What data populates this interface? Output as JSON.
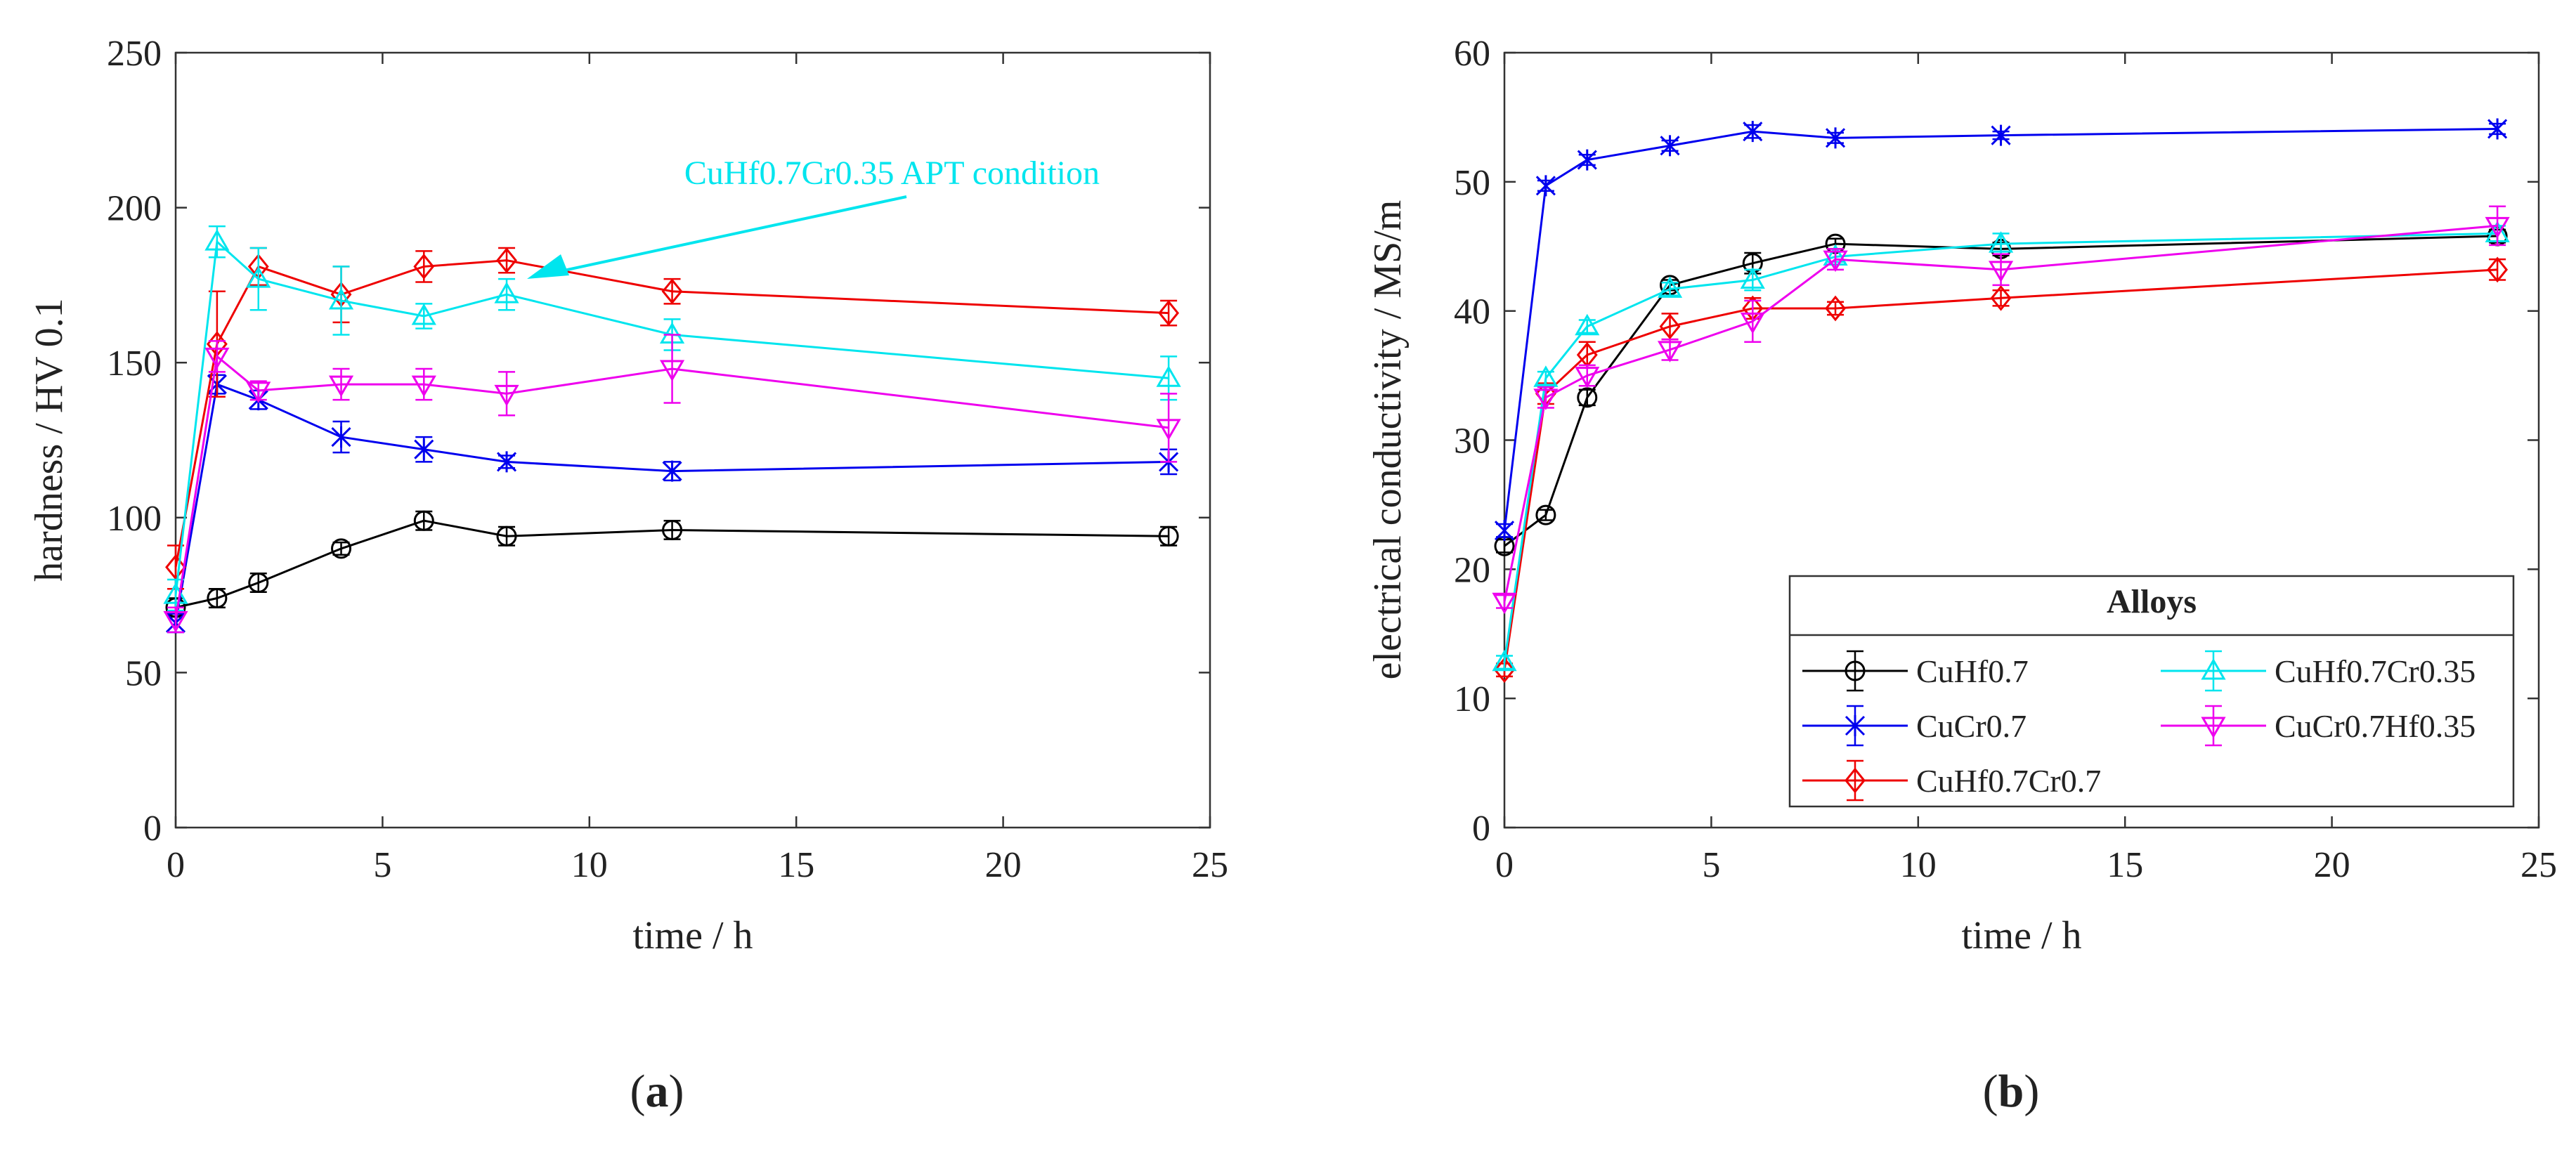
{
  "chart_data": [
    {
      "type": "line",
      "panel_label": "(a)",
      "panel_letter": "a",
      "xlabel": "time / h",
      "ylabel": "hardness / HV 0.1",
      "xlim": [
        0,
        25
      ],
      "ylim": [
        0,
        250
      ],
      "xticks": [
        0,
        5,
        10,
        15,
        20,
        25
      ],
      "yticks": [
        0,
        50,
        100,
        150,
        200,
        250
      ],
      "x": [
        0,
        1,
        2,
        4,
        6,
        8,
        12,
        24
      ],
      "annotation": {
        "text": "CuHf0.7Cr0.35 APT condition",
        "color": "#00e5ee",
        "points_to": [
          8,
          171
        ]
      },
      "series": [
        {
          "name": "CuHf0.7",
          "color": "#000000",
          "marker": "circle",
          "values": [
            71,
            74,
            79,
            90,
            99,
            94,
            96,
            94
          ],
          "errors": [
            3,
            3,
            3,
            2,
            3,
            3,
            3,
            3
          ]
        },
        {
          "name": "CuCr0.7",
          "color": "#0000ee",
          "marker": "star",
          "values": [
            66,
            143,
            138,
            126,
            122,
            118,
            115,
            118
          ],
          "errors": [
            3,
            3,
            3,
            5,
            4,
            2,
            3,
            4
          ]
        },
        {
          "name": "CuHf0.7Cr0.7",
          "color": "#ee0000",
          "marker": "diamond",
          "values": [
            84,
            156,
            181,
            172,
            181,
            183,
            173,
            166
          ],
          "errors": [
            7,
            17,
            6,
            9,
            5,
            4,
            4,
            4
          ]
        },
        {
          "name": "CuHf0.7Cr0.35",
          "color": "#00e5ee",
          "marker": "triangle-up",
          "values": [
            75,
            189,
            177,
            170,
            165,
            172,
            159,
            145
          ],
          "errors": [
            5,
            5,
            10,
            11,
            4,
            5,
            5,
            7
          ]
        },
        {
          "name": "CuCr0.7Hf0.35",
          "color": "#ee00ee",
          "marker": "triangle-down",
          "values": [
            67,
            152,
            141,
            143,
            143,
            140,
            148,
            129
          ],
          "errors": [
            4,
            5,
            3,
            5,
            5,
            7,
            11,
            11
          ]
        }
      ]
    },
    {
      "type": "line",
      "panel_label": "(b)",
      "panel_letter": "b",
      "xlabel": "time / h",
      "ylabel": "electrical conductivity / MS/m",
      "xlim": [
        0,
        25
      ],
      "ylim": [
        0,
        60
      ],
      "xticks": [
        0,
        5,
        10,
        15,
        20,
        25
      ],
      "yticks": [
        0,
        10,
        20,
        30,
        40,
        50,
        60
      ],
      "x": [
        0,
        1,
        2,
        4,
        6,
        8,
        12,
        24
      ],
      "legend": {
        "title": "Alloys",
        "placement": "bottom-right"
      },
      "series": [
        {
          "name": "CuHf0.7",
          "color": "#000000",
          "marker": "circle",
          "values": [
            21.8,
            24.2,
            33.3,
            42.0,
            43.7,
            45.2,
            44.8,
            45.8
          ],
          "errors": [
            0.5,
            0.4,
            0.6,
            0.4,
            0.8,
            0.4,
            0.5,
            0.5
          ]
        },
        {
          "name": "CuCr0.7",
          "color": "#0000ee",
          "marker": "star",
          "values": [
            23.0,
            49.7,
            51.7,
            52.8,
            53.9,
            53.4,
            53.6,
            54.1
          ],
          "errors": [
            0.5,
            0.4,
            0.4,
            0.4,
            0.5,
            0.4,
            0.3,
            0.4
          ]
        },
        {
          "name": "CuHf0.7Cr0.7",
          "color": "#ee0000",
          "marker": "diamond",
          "values": [
            12.2,
            33.6,
            36.6,
            38.8,
            40.2,
            40.2,
            41.0,
            43.2
          ],
          "errors": [
            0.5,
            0.8,
            1.0,
            1.0,
            0.8,
            0.5,
            0.6,
            0.8
          ]
        },
        {
          "name": "CuHf0.7Cr0.35",
          "color": "#00e5ee",
          "marker": "triangle-up",
          "values": [
            12.8,
            34.8,
            38.8,
            41.7,
            42.4,
            44.2,
            45.2,
            46.0
          ],
          "errors": [
            0.5,
            0.5,
            0.5,
            0.5,
            0.8,
            0.4,
            0.8,
            0.6
          ]
        },
        {
          "name": "CuCr0.7Hf0.35",
          "color": "#ee00ee",
          "marker": "triangle-down",
          "values": [
            17.5,
            33.3,
            35.0,
            37.0,
            39.2,
            44.0,
            43.2,
            46.6
          ],
          "errors": [
            0.5,
            0.8,
            0.8,
            0.8,
            1.6,
            0.8,
            1.2,
            1.5
          ]
        }
      ]
    }
  ]
}
